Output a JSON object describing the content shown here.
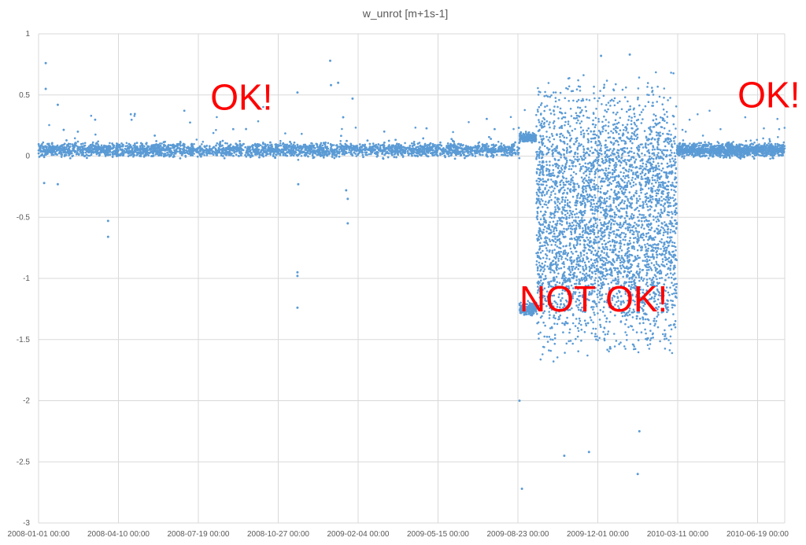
{
  "chart_data": {
    "type": "scatter",
    "title": "w_unrot [m+1s-1]",
    "xlabel": "",
    "ylabel": "",
    "x_tick_labels": [
      "2008-01-01 00:00",
      "2008-04-10 00:00",
      "2008-07-19 00:00",
      "2008-10-27 00:00",
      "2009-02-04 00:00",
      "2009-05-15 00:00",
      "2009-08-23 00:00",
      "2009-12-01 00:00",
      "2010-03-11 00:00",
      "2010-06-19 00:00"
    ],
    "xlim": [
      "2008-01-01",
      "2010-07-23"
    ],
    "y_tick_labels": [
      "1",
      "0.5",
      "0",
      "-0.5",
      "-1",
      "-1.5",
      "-2",
      "-2.5",
      "-3"
    ],
    "ylim": [
      -3,
      1
    ],
    "grid": true,
    "legend": "none",
    "series": [
      {
        "color": "#5b9bd5",
        "segments": [
          {
            "from": "2008-01-01",
            "to": "2009-08-25",
            "center": 0.05,
            "spread": 0.09
          },
          {
            "from": "2009-08-25",
            "to": "2009-09-15",
            "center": 0.15,
            "spread": 0.06
          },
          {
            "from": "2009-08-25",
            "to": "2009-09-15",
            "center": -1.25,
            "spread": 0.08
          },
          {
            "from": "2009-09-15",
            "to": "2010-03-10",
            "center": -0.5,
            "spread": 1.2
          },
          {
            "from": "2010-03-10",
            "to": "2010-07-23",
            "center": 0.05,
            "spread": 0.09
          }
        ],
        "outliers": [
          {
            "x": "2008-01-10",
            "y": 0.76
          },
          {
            "x": "2008-01-10",
            "y": 0.55
          },
          {
            "x": "2008-01-08",
            "y": -0.22
          },
          {
            "x": "2008-01-25",
            "y": 0.42
          },
          {
            "x": "2008-01-25",
            "y": -0.23
          },
          {
            "x": "2008-03-28",
            "y": -0.53
          },
          {
            "x": "2008-03-28",
            "y": -0.66
          },
          {
            "x": "2008-11-20",
            "y": -0.95
          },
          {
            "x": "2008-11-20",
            "y": -0.98
          },
          {
            "x": "2008-11-20",
            "y": -1.24
          },
          {
            "x": "2008-11-20",
            "y": 0.52
          },
          {
            "x": "2008-11-21",
            "y": -0.23
          },
          {
            "x": "2008-12-31",
            "y": 0.78
          },
          {
            "x": "2009-01-01",
            "y": 0.58
          },
          {
            "x": "2009-01-10",
            "y": 0.6
          },
          {
            "x": "2009-01-28",
            "y": 0.47
          },
          {
            "x": "2009-01-20",
            "y": -0.28
          },
          {
            "x": "2009-01-22",
            "y": -0.35
          },
          {
            "x": "2009-01-22",
            "y": -0.55
          },
          {
            "x": "2009-08-25",
            "y": -2.0
          },
          {
            "x": "2009-08-28",
            "y": -2.72
          },
          {
            "x": "2009-10-20",
            "y": -2.45
          },
          {
            "x": "2009-11-20",
            "y": -2.42
          },
          {
            "x": "2010-01-20",
            "y": -2.6
          },
          {
            "x": "2010-01-22",
            "y": -2.25
          },
          {
            "x": "2010-01-10",
            "y": 0.83
          },
          {
            "x": "2009-12-05",
            "y": 0.82
          }
        ]
      }
    ],
    "annotations": [
      {
        "text": "OK!",
        "x": "2008-08-03",
        "y": 0.38
      },
      {
        "text": "OK!",
        "x": "2010-05-25",
        "y": 0.4
      },
      {
        "text": "NOT OK!",
        "x": "2009-08-25",
        "y": -1.27
      }
    ]
  }
}
